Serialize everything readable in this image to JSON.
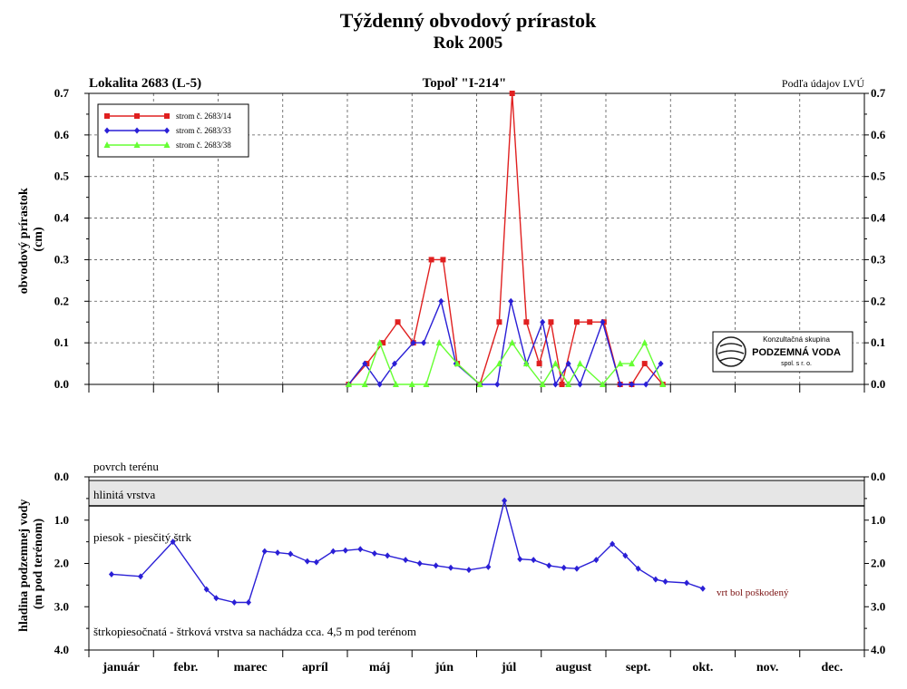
{
  "title": "Týždenný obvodový prírastok",
  "subtitle": "Rok 2005",
  "header": {
    "left": "Lokalita 2683 (L-5)",
    "center": "Topoľ \"I-214\"",
    "right": "Podľa údajov LVÚ"
  },
  "logo": {
    "line1": "Konzultačná skupina",
    "line2": "PODZEMNÁ VODA",
    "line3": "spol. s r. o."
  },
  "months": [
    "január",
    "febr.",
    "marec",
    "apríl",
    "máj",
    "jún",
    "júl",
    "august",
    "sept.",
    "okt.",
    "nov.",
    "dec."
  ],
  "colors": {
    "s14": "#e02020",
    "s33": "#2a1fd6",
    "s38": "#66ff33",
    "layer_band": "#e6e6e6",
    "note": "#7a1010"
  },
  "chart_data": [
    {
      "type": "line",
      "ylabel": "obvodový prírastok (cm)",
      "ylim": [
        0,
        0.7
      ],
      "yticks": [
        "0.0",
        "0.1",
        "0.2",
        "0.3",
        "0.4",
        "0.5",
        "0.6",
        "0.7"
      ],
      "grid": true,
      "legend": "top-left",
      "series": [
        {
          "name": "strom č. 2683/14",
          "color": "#e02020",
          "marker": "square",
          "points": [
            [
              4.02,
              0
            ],
            [
              4.3,
              0.05
            ],
            [
              4.55,
              0.1
            ],
            [
              4.78,
              0.15
            ],
            [
              5.02,
              0.1
            ],
            [
              5.3,
              0.3
            ],
            [
              5.48,
              0.3
            ],
            [
              5.7,
              0.05
            ],
            [
              6.05,
              0
            ],
            [
              6.35,
              0.15
            ],
            [
              6.55,
              0.7
            ],
            [
              6.77,
              0.15
            ],
            [
              6.97,
              0.05
            ],
            [
              7.15,
              0.15
            ],
            [
              7.32,
              0
            ],
            [
              7.55,
              0.15
            ],
            [
              7.75,
              0.15
            ],
            [
              7.97,
              0.15
            ],
            [
              8.22,
              0
            ],
            [
              8.4,
              0
            ],
            [
              8.6,
              0.05
            ],
            [
              8.88,
              0
            ]
          ]
        },
        {
          "name": "strom č. 2683/33",
          "color": "#2a1fd6",
          "marker": "diamond",
          "points": [
            [
              4.02,
              0
            ],
            [
              4.27,
              0.05
            ],
            [
              4.5,
              0
            ],
            [
              4.73,
              0.05
            ],
            [
              5.02,
              0.1
            ],
            [
              5.18,
              0.1
            ],
            [
              5.45,
              0.2
            ],
            [
              5.68,
              0.05
            ],
            [
              6.05,
              0
            ],
            [
              6.32,
              0
            ],
            [
              6.53,
              0.2
            ],
            [
              6.77,
              0.05
            ],
            [
              7.02,
              0.15
            ],
            [
              7.22,
              0
            ],
            [
              7.42,
              0.05
            ],
            [
              7.6,
              0
            ],
            [
              7.95,
              0.15
            ],
            [
              8.22,
              0
            ],
            [
              8.4,
              0
            ],
            [
              8.62,
              0
            ],
            [
              8.85,
              0.05
            ]
          ]
        },
        {
          "name": "strom č. 2683/38",
          "color": "#66ff33",
          "marker": "triangle",
          "points": [
            [
              4.02,
              0
            ],
            [
              4.27,
              0
            ],
            [
              4.5,
              0.1
            ],
            [
              4.75,
              0
            ],
            [
              5.0,
              0
            ],
            [
              5.22,
              0
            ],
            [
              5.42,
              0.1
            ],
            [
              5.7,
              0.05
            ],
            [
              6.05,
              0
            ],
            [
              6.35,
              0.05
            ],
            [
              6.55,
              0.1
            ],
            [
              6.77,
              0.05
            ],
            [
              7.02,
              0
            ],
            [
              7.22,
              0.05
            ],
            [
              7.42,
              0
            ],
            [
              7.6,
              0.05
            ],
            [
              7.95,
              0
            ],
            [
              8.22,
              0.05
            ],
            [
              8.4,
              0.05
            ],
            [
              8.6,
              0.1
            ],
            [
              8.88,
              0
            ]
          ]
        }
      ]
    },
    {
      "type": "line",
      "ylabel": "hladina podzemnej vody (m pod terénom)",
      "ylim": [
        0,
        4
      ],
      "yticks": [
        "0.0",
        "1.0",
        "2.0",
        "3.0",
        "4.0"
      ],
      "inverted": true,
      "grid": false,
      "layers": {
        "surface": "povrch terénu",
        "clay": "hlinitá vrstva",
        "clay_depth": [
          0.06,
          0.68
        ],
        "sand": "piesok - piesčitý štrk",
        "gravel": "štrkopiesočnatá - štrková vrstva sa nachádza cca. 4,5 m pod terénom"
      },
      "note": "vrt bol poškodený",
      "series": [
        {
          "name": "",
          "color": "#2a1fd6",
          "marker": "diamond",
          "points": [
            [
              0.35,
              2.25
            ],
            [
              0.8,
              2.3
            ],
            [
              1.3,
              1.5
            ],
            [
              1.82,
              2.6
            ],
            [
              1.97,
              2.8
            ],
            [
              2.25,
              2.9
            ],
            [
              2.47,
              2.9
            ],
            [
              2.72,
              1.72
            ],
            [
              2.92,
              1.75
            ],
            [
              3.12,
              1.78
            ],
            [
              3.38,
              1.95
            ],
            [
              3.52,
              1.97
            ],
            [
              3.78,
              1.72
            ],
            [
              3.97,
              1.7
            ],
            [
              4.2,
              1.67
            ],
            [
              4.42,
              1.77
            ],
            [
              4.62,
              1.82
            ],
            [
              4.9,
              1.92
            ],
            [
              5.12,
              2.0
            ],
            [
              5.37,
              2.05
            ],
            [
              5.6,
              2.1
            ],
            [
              5.88,
              2.15
            ],
            [
              6.18,
              2.08
            ],
            [
              6.43,
              0.55
            ],
            [
              6.67,
              1.9
            ],
            [
              6.88,
              1.92
            ],
            [
              7.12,
              2.05
            ],
            [
              7.35,
              2.1
            ],
            [
              7.55,
              2.12
            ],
            [
              7.85,
              1.92
            ],
            [
              8.1,
              1.55
            ],
            [
              8.3,
              1.82
            ],
            [
              8.5,
              2.12
            ],
            [
              8.77,
              2.37
            ],
            [
              8.92,
              2.42
            ],
            [
              9.25,
              2.45
            ],
            [
              9.5,
              2.58
            ]
          ]
        }
      ]
    }
  ]
}
